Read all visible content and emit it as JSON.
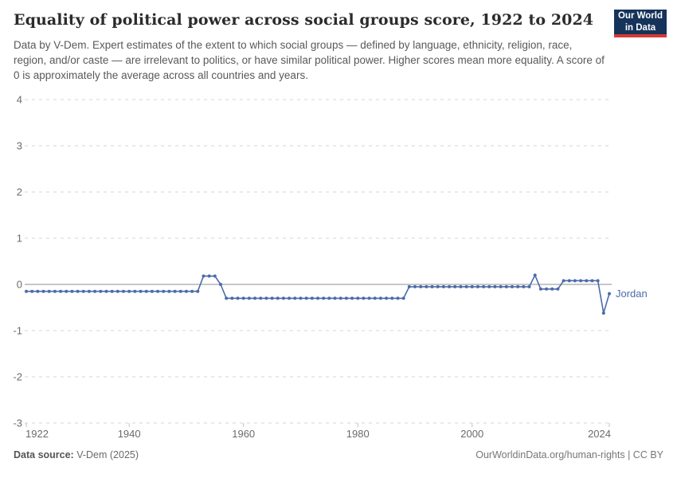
{
  "header": {
    "title": "Equality of political power across social groups score, 1922 to 2024",
    "subtitle": "Data by V-Dem. Expert estimates of the extent to which social groups — defined by language, ethnicity, religion, race, region, and/or caste — are irrelevant to politics, or have similar political power. Higher scores mean more equality. A score of 0 is approximately the average across all countries and years.",
    "logo": {
      "line1": "Our World",
      "line2": "in Data",
      "bg_color": "#16335a",
      "accent_color": "#d73a33"
    }
  },
  "chart_data": {
    "type": "line",
    "title": "Equality of political power across social groups score, 1922 to 2024",
    "entity": "Jordan",
    "x_range": [
      1922,
      2024
    ],
    "ylim": [
      -3,
      4
    ],
    "yticks": [
      4,
      3,
      2,
      1,
      0,
      -1,
      -2,
      -3
    ],
    "xticks": [
      1922,
      1940,
      1960,
      1980,
      2000,
      2024
    ],
    "grid": "horizontal-dashed",
    "zero_line": true,
    "legend_position": "end-of-line",
    "series": [
      {
        "name": "Jordan",
        "color": "#4c6ba9",
        "years_start": 1922,
        "values": [
          -0.15,
          -0.15,
          -0.15,
          -0.15,
          -0.15,
          -0.15,
          -0.15,
          -0.15,
          -0.15,
          -0.15,
          -0.15,
          -0.15,
          -0.15,
          -0.15,
          -0.15,
          -0.15,
          -0.15,
          -0.15,
          -0.15,
          -0.15,
          -0.15,
          -0.15,
          -0.15,
          -0.15,
          -0.15,
          -0.15,
          -0.15,
          -0.15,
          -0.15,
          -0.15,
          -0.15,
          0.18,
          0.18,
          0.18,
          0,
          -0.3,
          -0.3,
          -0.3,
          -0.3,
          -0.3,
          -0.3,
          -0.3,
          -0.3,
          -0.3,
          -0.3,
          -0.3,
          -0.3,
          -0.3,
          -0.3,
          -0.3,
          -0.3,
          -0.3,
          -0.3,
          -0.3,
          -0.3,
          -0.3,
          -0.3,
          -0.3,
          -0.3,
          -0.3,
          -0.3,
          -0.3,
          -0.3,
          -0.3,
          -0.3,
          -0.3,
          -0.3,
          -0.05,
          -0.05,
          -0.05,
          -0.05,
          -0.05,
          -0.05,
          -0.05,
          -0.05,
          -0.05,
          -0.05,
          -0.05,
          -0.05,
          -0.05,
          -0.05,
          -0.05,
          -0.05,
          -0.05,
          -0.05,
          -0.05,
          -0.05,
          -0.05,
          -0.05,
          0.2,
          -0.1,
          -0.1,
          -0.1,
          -0.1,
          0.08,
          0.08,
          0.08,
          0.08,
          0.08,
          0.08,
          0.08,
          -0.62,
          -0.2
        ]
      }
    ],
    "end_label": "Jordan"
  },
  "footer": {
    "source_label": "Data source:",
    "source_value": " V-Dem (2025)",
    "credit": "OurWorldinData.org/human-rights | CC BY"
  }
}
